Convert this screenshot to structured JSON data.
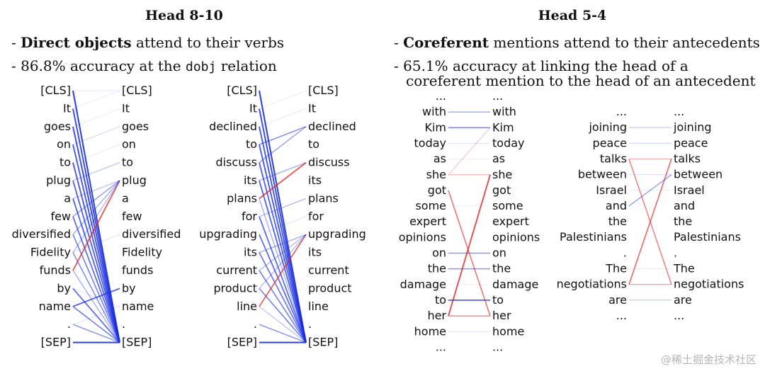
{
  "colors": {
    "text": "#111111",
    "highlight": "#c0392b",
    "blue": "#1a2fe0",
    "red": "#e02020",
    "watermark": "#b5b5b5"
  },
  "left": {
    "title": "Head 8-10",
    "bullet1": {
      "prefix": "- ",
      "bold": "Direct objects",
      "rest": " attend to their verbs"
    },
    "bullet2": {
      "prefix": "- 86.8% accuracy at the ",
      "code": "dobj",
      "rest": " relation"
    },
    "panels": [
      {
        "tokens": [
          "[CLS]",
          "It",
          "goes",
          "on",
          "to",
          "plug",
          "a",
          "few",
          "diversified",
          "Fidelity",
          "funds",
          "by",
          "name",
          ".",
          "[SEP]"
        ],
        "highlight": [
          10
        ],
        "edges": [
          {
            "from": 0,
            "to": 14,
            "w": 0.9,
            "c": "b"
          },
          {
            "from": 1,
            "to": 14,
            "w": 0.85,
            "c": "b"
          },
          {
            "from": 2,
            "to": 14,
            "w": 0.85,
            "c": "b"
          },
          {
            "from": 3,
            "to": 14,
            "w": 0.8,
            "c": "b"
          },
          {
            "from": 4,
            "to": 14,
            "w": 0.8,
            "c": "b"
          },
          {
            "from": 5,
            "to": 14,
            "w": 0.75,
            "c": "b"
          },
          {
            "from": 6,
            "to": 14,
            "w": 0.75,
            "c": "b"
          },
          {
            "from": 7,
            "to": 14,
            "w": 0.7,
            "c": "b"
          },
          {
            "from": 8,
            "to": 14,
            "w": 0.6,
            "c": "b"
          },
          {
            "from": 9,
            "to": 14,
            "w": 0.55,
            "c": "b"
          },
          {
            "from": 11,
            "to": 14,
            "w": 0.7,
            "c": "b"
          },
          {
            "from": 12,
            "to": 14,
            "w": 0.6,
            "c": "b"
          },
          {
            "from": 13,
            "to": 14,
            "w": 0.5,
            "c": "b"
          },
          {
            "from": 14,
            "to": 14,
            "w": 0.9,
            "c": "b"
          },
          {
            "from": 10,
            "to": 5,
            "w": 0.75,
            "c": "r"
          },
          {
            "from": 12,
            "to": 11,
            "w": 0.75,
            "c": "b"
          },
          {
            "from": 7,
            "to": 5,
            "w": 0.45,
            "c": "b"
          },
          {
            "from": 8,
            "to": 5,
            "w": 0.4,
            "c": "b"
          },
          {
            "from": 9,
            "to": 5,
            "w": 0.35,
            "c": "b"
          },
          {
            "from": 5,
            "to": 4,
            "w": 0.3,
            "c": "b"
          },
          {
            "from": 6,
            "to": 5,
            "w": 0.3,
            "c": "b"
          },
          {
            "from": 3,
            "to": 2,
            "w": 0.2,
            "c": "b"
          },
          {
            "from": 0,
            "to": 0,
            "w": 0.12,
            "c": "b"
          },
          {
            "from": 1,
            "to": 0,
            "w": 0.1,
            "c": "b"
          },
          {
            "from": 2,
            "to": 1,
            "w": 0.1,
            "c": "b"
          },
          {
            "from": 4,
            "to": 3,
            "w": 0.12,
            "c": "b"
          },
          {
            "from": 11,
            "to": 12,
            "w": 0.15,
            "c": "b"
          },
          {
            "from": 13,
            "to": 12,
            "w": 0.15,
            "c": "b"
          },
          {
            "from": 9,
            "to": 8,
            "w": 0.15,
            "c": "b"
          },
          {
            "from": 10,
            "to": 14,
            "w": 0.4,
            "c": "b"
          }
        ]
      },
      {
        "tokens": [
          "[CLS]",
          "It",
          "declined",
          "to",
          "discuss",
          "its",
          "plans",
          "for",
          "upgrading",
          "its",
          "current",
          "product",
          "line",
          ".",
          "[SEP]"
        ],
        "highlight": [
          6,
          12
        ],
        "edges": [
          {
            "from": 0,
            "to": 14,
            "w": 0.9,
            "c": "b"
          },
          {
            "from": 1,
            "to": 14,
            "w": 0.85,
            "c": "b"
          },
          {
            "from": 2,
            "to": 14,
            "w": 0.8,
            "c": "b"
          },
          {
            "from": 3,
            "to": 14,
            "w": 0.8,
            "c": "b"
          },
          {
            "from": 4,
            "to": 14,
            "w": 0.75,
            "c": "b"
          },
          {
            "from": 5,
            "to": 14,
            "w": 0.75,
            "c": "b"
          },
          {
            "from": 7,
            "to": 14,
            "w": 0.7,
            "c": "b"
          },
          {
            "from": 8,
            "to": 14,
            "w": 0.7,
            "c": "b"
          },
          {
            "from": 9,
            "to": 14,
            "w": 0.65,
            "c": "b"
          },
          {
            "from": 10,
            "to": 14,
            "w": 0.6,
            "c": "b"
          },
          {
            "from": 11,
            "to": 14,
            "w": 0.6,
            "c": "b"
          },
          {
            "from": 13,
            "to": 14,
            "w": 0.5,
            "c": "b"
          },
          {
            "from": 14,
            "to": 14,
            "w": 0.9,
            "c": "b"
          },
          {
            "from": 6,
            "to": 4,
            "w": 0.75,
            "c": "r"
          },
          {
            "from": 12,
            "to": 8,
            "w": 0.7,
            "c": "r"
          },
          {
            "from": 3,
            "to": 2,
            "w": 0.55,
            "c": "b"
          },
          {
            "from": 4,
            "to": 2,
            "w": 0.45,
            "c": "b"
          },
          {
            "from": 5,
            "to": 4,
            "w": 0.4,
            "c": "b"
          },
          {
            "from": 7,
            "to": 6,
            "w": 0.35,
            "c": "b"
          },
          {
            "from": 9,
            "to": 8,
            "w": 0.4,
            "c": "b"
          },
          {
            "from": 10,
            "to": 8,
            "w": 0.35,
            "c": "b"
          },
          {
            "from": 11,
            "to": 8,
            "w": 0.35,
            "c": "b"
          },
          {
            "from": 6,
            "to": 14,
            "w": 0.4,
            "c": "b"
          },
          {
            "from": 12,
            "to": 14,
            "w": 0.3,
            "c": "b"
          },
          {
            "from": 1,
            "to": 0,
            "w": 0.1,
            "c": "b"
          },
          {
            "from": 2,
            "to": 1,
            "w": 0.12,
            "c": "b"
          },
          {
            "from": 8,
            "to": 7,
            "w": 0.15,
            "c": "b"
          }
        ]
      }
    ]
  },
  "right": {
    "title": "Head 5-4",
    "bullet1": {
      "prefix": "- ",
      "bold": "Coreferent",
      "rest": " mentions attend to their antecedents"
    },
    "bullet2_line1": "- 65.1% accuracy at linking the head of a",
    "bullet2_line2": "coreferent mention to the head of an antecedent",
    "panels": [
      {
        "tokens": [
          "...",
          "with",
          "Kim",
          "today",
          "as",
          "she",
          "got",
          "some",
          "expert",
          "opinions",
          "on",
          "the",
          "damage",
          "to",
          "her",
          "home",
          "..."
        ],
        "highlight": [
          5,
          14
        ],
        "edges": [
          {
            "from": 1,
            "to": 1,
            "w": 0.4,
            "c": "b"
          },
          {
            "from": 2,
            "to": 2,
            "w": 0.55,
            "c": "b"
          },
          {
            "from": 3,
            "to": 3,
            "w": 0.15,
            "c": "b"
          },
          {
            "from": 5,
            "to": 2,
            "w": 0.25,
            "c": "r"
          },
          {
            "from": 5,
            "to": 5,
            "w": 0.35,
            "c": "r"
          },
          {
            "from": 6,
            "to": 14,
            "w": 0.6,
            "c": "r"
          },
          {
            "from": 14,
            "to": 5,
            "w": 0.8,
            "c": "r"
          },
          {
            "from": 10,
            "to": 10,
            "w": 0.5,
            "c": "b"
          },
          {
            "from": 11,
            "to": 11,
            "w": 0.5,
            "c": "b"
          },
          {
            "from": 13,
            "to": 13,
            "w": 0.7,
            "c": "b"
          },
          {
            "from": 14,
            "to": 14,
            "w": 0.5,
            "c": "r"
          },
          {
            "from": 15,
            "to": 15,
            "w": 0.15,
            "c": "b"
          },
          {
            "from": 4,
            "to": 4,
            "w": 0.1,
            "c": "b"
          },
          {
            "from": 12,
            "to": 12,
            "w": 0.1,
            "c": "b"
          },
          {
            "from": 7,
            "to": 7,
            "w": 0.08,
            "c": "b"
          }
        ]
      },
      {
        "tokens": [
          "...",
          "joining",
          "peace",
          "talks",
          "between",
          "Israel",
          "and",
          "the",
          "Palestinians",
          ".",
          "The",
          "negotiations",
          "are",
          "..."
        ],
        "highlight": [
          3,
          11
        ],
        "edges": [
          {
            "from": 1,
            "to": 1,
            "w": 0.25,
            "c": "b"
          },
          {
            "from": 2,
            "to": 2,
            "w": 0.2,
            "c": "b"
          },
          {
            "from": 3,
            "to": 3,
            "w": 0.35,
            "c": "r"
          },
          {
            "from": 3,
            "to": 11,
            "w": 0.55,
            "c": "r"
          },
          {
            "from": 11,
            "to": 3,
            "w": 0.65,
            "c": "r"
          },
          {
            "from": 11,
            "to": 11,
            "w": 0.4,
            "c": "r"
          },
          {
            "from": 6,
            "to": 4,
            "w": 0.45,
            "c": "b"
          },
          {
            "from": 10,
            "to": 10,
            "w": 0.1,
            "c": "b"
          },
          {
            "from": 12,
            "to": 12,
            "w": 0.3,
            "c": "b"
          },
          {
            "from": 4,
            "to": 4,
            "w": 0.15,
            "c": "b"
          },
          {
            "from": 5,
            "to": 5,
            "w": 0.1,
            "c": "b"
          }
        ]
      }
    ]
  },
  "watermark": "@稀土掘金技术社区"
}
